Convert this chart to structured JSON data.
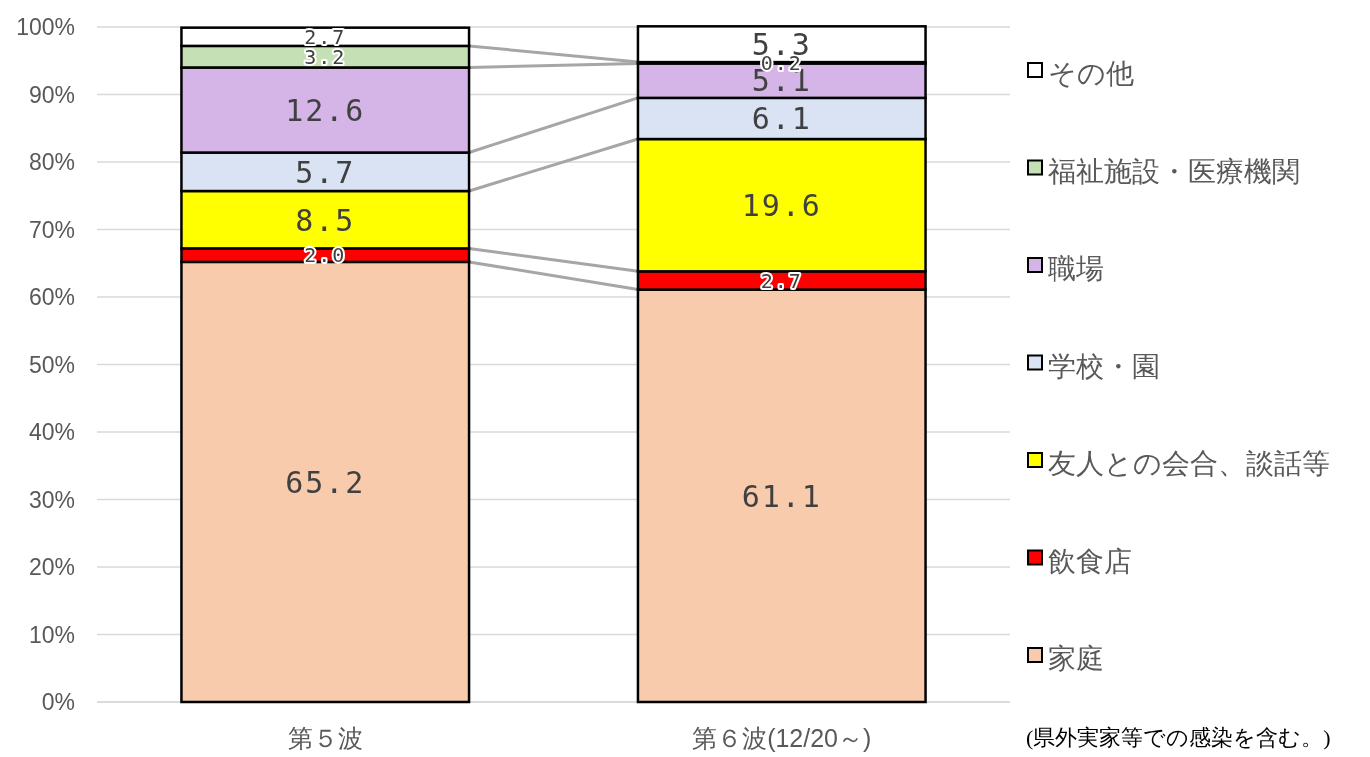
{
  "chart_data": {
    "type": "bar",
    "stacked": true,
    "categories": [
      "第５波",
      "第６波(12/20～)"
    ],
    "series": [
      {
        "name": "家庭",
        "color": "#f8cbad",
        "values": [
          65.2,
          61.1
        ],
        "value_labels": [
          "65.2",
          "61.1"
        ]
      },
      {
        "name": "飲食店",
        "color": "#ff0000",
        "values": [
          2.0,
          2.7
        ],
        "value_labels": [
          "2.0",
          "2.7"
        ]
      },
      {
        "name": "友人との会合、談話等",
        "color": "#ffff00",
        "values": [
          8.5,
          19.6
        ],
        "value_labels": [
          "8.5",
          "19.6"
        ]
      },
      {
        "name": "学校・園",
        "color": "#dae3f3",
        "values": [
          5.7,
          6.1
        ],
        "value_labels": [
          "5.7",
          "6.1"
        ]
      },
      {
        "name": "職場",
        "color": "#d5b4e8",
        "values": [
          12.6,
          5.1
        ],
        "value_labels": [
          "12.6",
          "5.1"
        ]
      },
      {
        "name": "福祉施設・医療機関",
        "color": "#c5e0b4",
        "values": [
          3.2,
          0.2
        ],
        "value_labels": [
          "3.2",
          "0.2"
        ]
      },
      {
        "name": "その他",
        "color": "#ffffff",
        "values": [
          2.7,
          5.3
        ],
        "value_labels": [
          "2.7",
          "5.3"
        ]
      }
    ],
    "ylim": [
      0,
      100
    ],
    "yticks": [
      {
        "value": 0,
        "label": "0%"
      },
      {
        "value": 10,
        "label": "10%"
      },
      {
        "value": 20,
        "label": "20%"
      },
      {
        "value": 30,
        "label": "30%"
      },
      {
        "value": 40,
        "label": "40%"
      },
      {
        "value": 50,
        "label": "50%"
      },
      {
        "value": 60,
        "label": "60%"
      },
      {
        "value": 70,
        "label": "70%"
      },
      {
        "value": 80,
        "label": "80%"
      },
      {
        "value": 90,
        "label": "90%"
      },
      {
        "value": 100,
        "label": "100%"
      }
    ],
    "grid": "y",
    "legend": "right",
    "annotations": [
      "(県外実家等での感染を含む。)"
    ]
  }
}
